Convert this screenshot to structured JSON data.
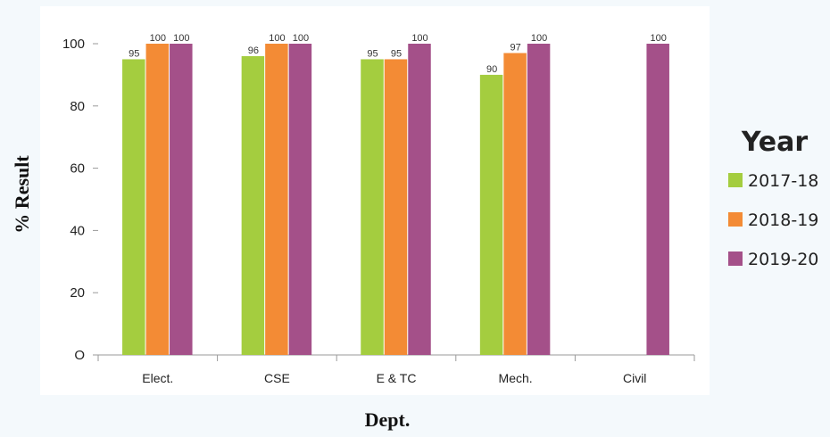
{
  "chart_data": {
    "type": "bar",
    "categories": [
      "Elect.",
      "CSE",
      "E & TC",
      "Mech.",
      "Civil"
    ],
    "series": [
      {
        "name": "2017-18",
        "color": "#a4cd3f",
        "values": [
          95,
          96,
          95,
          90,
          null
        ]
      },
      {
        "name": "2018-19",
        "color": "#f38b35",
        "values": [
          100,
          100,
          95,
          97,
          null
        ]
      },
      {
        "name": "2019-20",
        "color": "#a45089",
        "values": [
          100,
          100,
          100,
          100,
          100
        ]
      }
    ],
    "title": "",
    "xlabel": "Dept.",
    "ylabel": "% Result",
    "ylim": [
      0,
      100
    ],
    "yticks": [
      {
        "value": 0,
        "label": "O"
      },
      {
        "value": 20,
        "label": "20"
      },
      {
        "value": 40,
        "label": "40"
      },
      {
        "value": 60,
        "label": "60"
      },
      {
        "value": 80,
        "label": "80"
      },
      {
        "value": 100,
        "label": "100"
      }
    ],
    "legend_title": "Year",
    "legend_position": "right",
    "grid": false
  }
}
